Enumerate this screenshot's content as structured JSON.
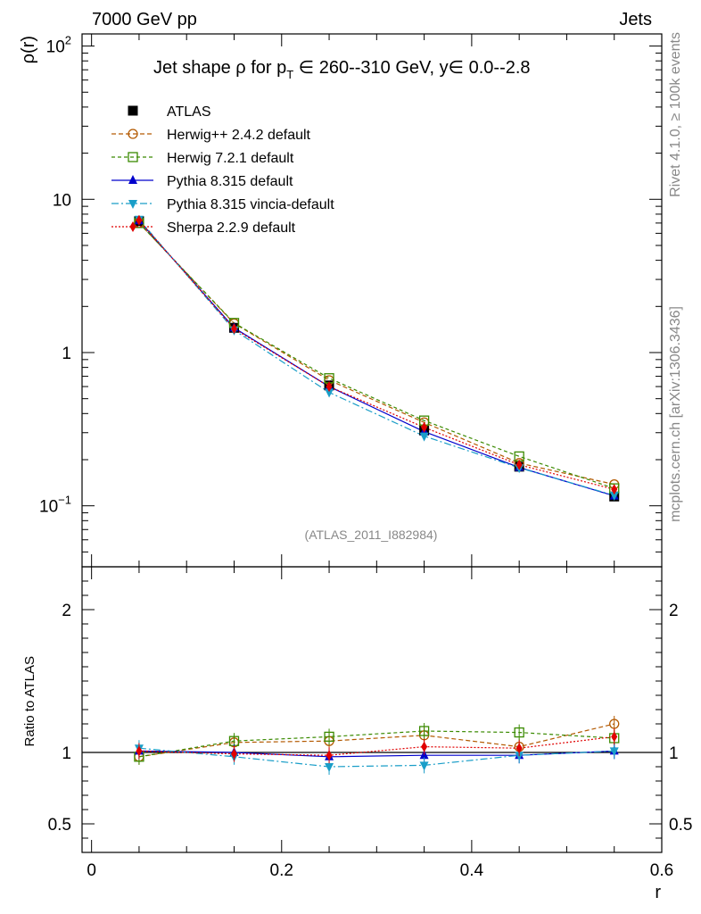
{
  "header": {
    "left": "7000 GeV pp",
    "right": "Jets"
  },
  "side": {
    "rivet": "Rivet 4.1.0, ≥ 100k events",
    "mcplots": "mcplots.cern.ch [arXiv:1306.3436]"
  },
  "chart_data": {
    "type": "line",
    "title": "Jet shape ρ for p_T ∈ 260--310 GeV, y∈ 0.0--2.8",
    "title_parts": {
      "a": "Jet shape ρ for p",
      "sub": "T",
      "b": " ∈ 260--310 GeV, y∈ 0.0--2.8"
    },
    "analysis_tag": "(ATLAS_2011_I882984)",
    "xlabel": "r",
    "ylabel_top": "ρ(r)",
    "ylabel_bottom": "Ratio to ATLAS",
    "xlim": [
      -0.01,
      0.6
    ],
    "ylim_top_log": [
      0.04,
      120
    ],
    "ylim_bottom": [
      0.3,
      2.3
    ],
    "x_ticks": [
      {
        "v": 0,
        "label": "0"
      },
      {
        "v": 0.2,
        "label": "0.2"
      },
      {
        "v": 0.4,
        "label": "0.4"
      },
      {
        "v": 0.6,
        "label": "0.6"
      }
    ],
    "y_ticks_top": [
      {
        "v": 0.1,
        "label": "10",
        "exp": "−1"
      },
      {
        "v": 1,
        "label": "1",
        "exp": ""
      },
      {
        "v": 10,
        "label": "10",
        "exp": ""
      },
      {
        "v": 100,
        "label": "10",
        "exp": "2"
      }
    ],
    "y_ticks_bottom": [
      {
        "v": 0.5,
        "label": "0.5"
      },
      {
        "v": 1,
        "label": "1"
      },
      {
        "v": 2,
        "label": "2"
      }
    ],
    "x": [
      0.05,
      0.15,
      0.25,
      0.35,
      0.45,
      0.55
    ],
    "data": {
      "name": "ATLAS",
      "values": [
        7.2,
        1.45,
        0.61,
        0.31,
        0.18,
        0.115
      ]
    },
    "series": [
      {
        "name": "Herwig++ 2.4.2 default",
        "color": "#b35900",
        "dash": "5,3",
        "marker": "circle-open",
        "values": [
          7.0,
          1.55,
          0.66,
          0.35,
          0.19,
          0.138
        ],
        "ratio": [
          0.97,
          1.07,
          1.08,
          1.12,
          1.04,
          1.2
        ]
      },
      {
        "name": "Herwig 7.2.1 default",
        "color": "#3a8a00",
        "dash": "4,3",
        "marker": "square-open",
        "values": [
          7.0,
          1.56,
          0.68,
          0.36,
          0.21,
          0.13
        ],
        "ratio": [
          0.97,
          1.08,
          1.11,
          1.15,
          1.14,
          1.1
        ]
      },
      {
        "name": "Pythia 8.315 default",
        "color": "#0000cc",
        "dash": "",
        "marker": "triangle-up",
        "values": [
          7.25,
          1.45,
          0.6,
          0.305,
          0.178,
          0.116
        ],
        "ratio": [
          1.01,
          1.0,
          0.97,
          0.98,
          0.98,
          1.01
        ]
      },
      {
        "name": "Pythia 8.315 vincia-default",
        "color": "#1a9ec8",
        "dash": "8,3,2,3",
        "marker": "triangle-down",
        "values": [
          7.4,
          1.4,
          0.55,
          0.285,
          0.177,
          0.117
        ],
        "ratio": [
          1.03,
          0.97,
          0.9,
          0.91,
          0.98,
          1.01
        ]
      },
      {
        "name": "Sherpa 2.2.9 default",
        "color": "#e00000",
        "dash": "2,2",
        "marker": "diamond",
        "values": [
          7.3,
          1.43,
          0.6,
          0.325,
          0.185,
          0.128
        ],
        "ratio": [
          1.01,
          0.99,
          0.98,
          1.04,
          1.03,
          1.11
        ]
      }
    ]
  }
}
